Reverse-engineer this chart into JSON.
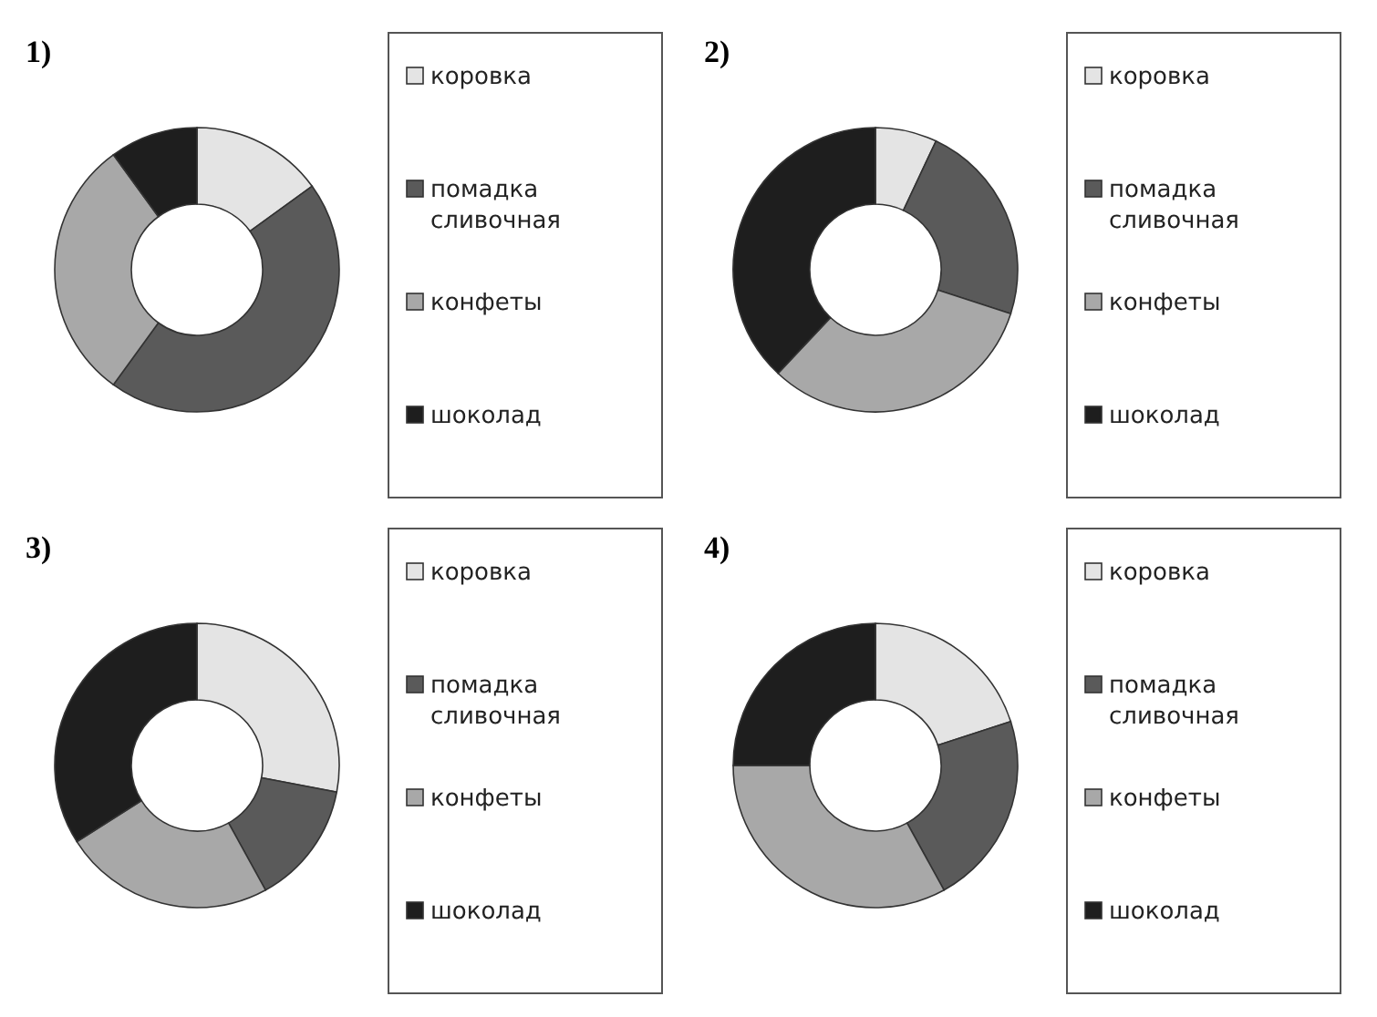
{
  "chart_data": [
    {
      "type": "donut",
      "title": "1)",
      "categories": [
        "коровка",
        "помадка сливочная",
        "конфеты",
        "шоколад"
      ],
      "values": [
        15,
        45,
        30,
        10
      ],
      "colors": [
        "#e4e4e4",
        "#5a5a5a",
        "#a8a8a8",
        "#1e1e1e"
      ],
      "legend": "right"
    },
    {
      "type": "donut",
      "title": "2)",
      "categories": [
        "коровка",
        "помадка сливочная",
        "конфеты",
        "шоколад"
      ],
      "values": [
        7,
        23,
        32,
        38
      ],
      "colors": [
        "#e4e4e4",
        "#5a5a5a",
        "#a8a8a8",
        "#1e1e1e"
      ],
      "legend": "right"
    },
    {
      "type": "donut",
      "title": "3)",
      "categories": [
        "коровка",
        "помадка сливочная",
        "конфеты",
        "шоколад"
      ],
      "values": [
        28,
        14,
        24,
        34
      ],
      "colors": [
        "#e4e4e4",
        "#5a5a5a",
        "#a8a8a8",
        "#1e1e1e"
      ],
      "legend": "right"
    },
    {
      "type": "donut",
      "title": "4)",
      "categories": [
        "коровка",
        "помадка сливочная",
        "конфеты",
        "шоколад"
      ],
      "values": [
        20,
        22,
        33,
        25
      ],
      "colors": [
        "#e4e4e4",
        "#5a5a5a",
        "#a8a8a8",
        "#1e1e1e"
      ],
      "legend": "right"
    }
  ]
}
